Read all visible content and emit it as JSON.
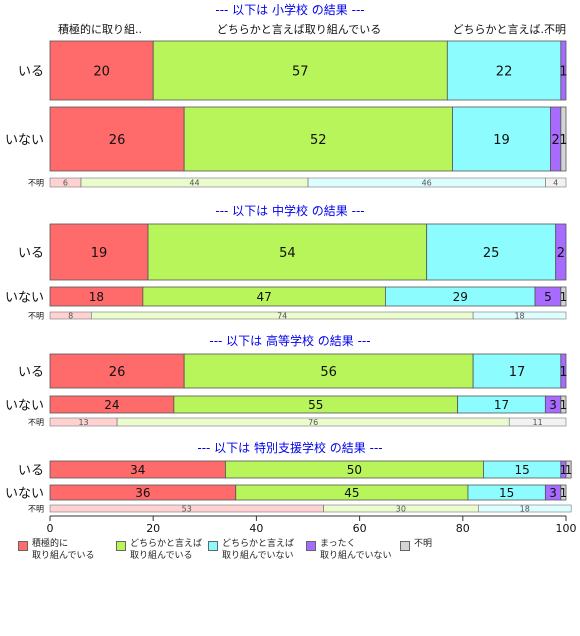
{
  "chart_data": {
    "type": "bar",
    "orientation": "horizontal-stacked-percent",
    "xlim": [
      0,
      100
    ],
    "xticks": [
      0,
      20,
      40,
      60,
      80,
      100
    ],
    "header_labels": [
      "積極的に取り組..",
      "どちらかと言えば取り組んでいる",
      "どちらかと言えば..",
      "不明"
    ],
    "colors": [
      "#ff6b6b",
      "#b8f55a",
      "#8dfcff",
      "#a76bff",
      "#d4d4d4"
    ],
    "legend": [
      {
        "label": "積極的に\n取り組んでいる",
        "color": "#ff6b6b"
      },
      {
        "label": "どちらかと言えば\n取り組んでいる",
        "color": "#b8f55a"
      },
      {
        "label": "どちらかと言えば\n取り組んでいない",
        "color": "#8dfcff"
      },
      {
        "label": "まったく\n取り組んでいない",
        "color": "#a76bff"
      },
      {
        "label": "不明",
        "color": "#d4d4d4"
      }
    ],
    "panels": [
      {
        "title": "--- 以下は 小学校 の結果 ---",
        "rows": [
          {
            "label": "いる",
            "values": [
              20,
              57,
              22,
              1,
              0
            ]
          },
          {
            "label": "いない",
            "values": [
              26,
              52,
              19,
              2,
              1
            ]
          }
        ],
        "unknown": {
          "label": "不明",
          "values": [
            6,
            44,
            46,
            4
          ]
        }
      },
      {
        "title": "--- 以下は 中学校 の結果 ---",
        "rows": [
          {
            "label": "いる",
            "values": [
              19,
              54,
              25,
              2,
              0
            ]
          },
          {
            "label": "いない",
            "values": [
              18,
              47,
              29,
              5,
              1
            ]
          }
        ],
        "unknown": {
          "label": "不明",
          "values": [
            8,
            74,
            18,
            0
          ]
        }
      },
      {
        "title": "--- 以下は 高等学校 の結果 ---",
        "rows": [
          {
            "label": "いる",
            "values": [
              26,
              56,
              17,
              1,
              0
            ]
          },
          {
            "label": "いない",
            "values": [
              24,
              55,
              17,
              3,
              1
            ]
          }
        ],
        "unknown": {
          "label": "不明",
          "values": [
            13,
            76,
            0,
            11
          ]
        }
      },
      {
        "title": "--- 以下は 特別支援学校 の結果 ---",
        "rows": [
          {
            "label": "いる",
            "values": [
              34,
              50,
              15,
              1,
              1
            ]
          },
          {
            "label": "いない",
            "values": [
              36,
              45,
              15,
              3,
              1
            ]
          }
        ],
        "unknown": {
          "label": "不明",
          "values": [
            53,
            30,
            18,
            0
          ]
        }
      }
    ]
  }
}
